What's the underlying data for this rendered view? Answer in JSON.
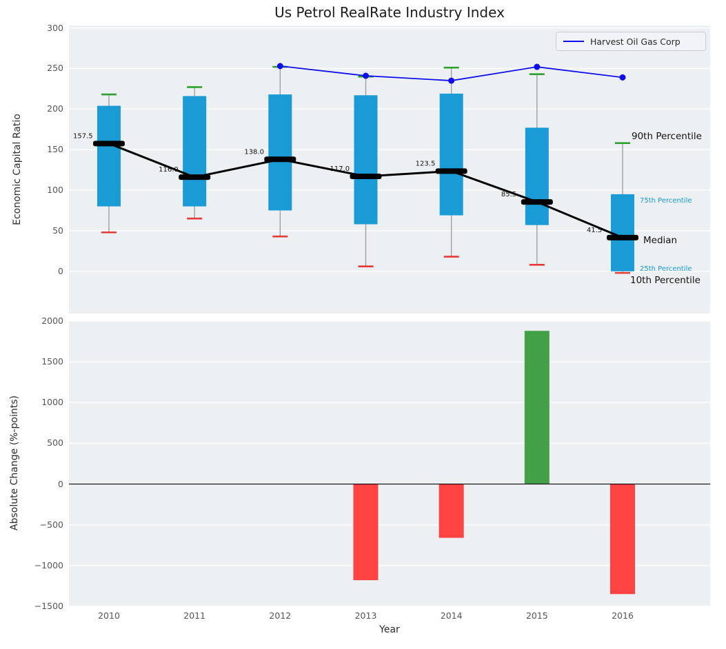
{
  "title": "Us Petrol RealRate Industry Index",
  "legend": {
    "series_label": "Harvest Oil Gas Corp"
  },
  "annotations": {
    "p90": "90th Percentile",
    "p75": "75th Percentile",
    "median": "Median",
    "p25": "25th Percentile",
    "p10": "10th Percentile"
  },
  "colors": {
    "box_fill": "#1a9bd5",
    "p90_cap_green": "#2ca02c",
    "p10_cap_red": "#e53935",
    "bar_positive_green": "#43a047",
    "bar_negative_red": "#ff4343",
    "harvest_line_blue": "#0d0dee",
    "median_black": "#000000",
    "plot_background": "#edf0f3",
    "gridline": "#ffffff",
    "whisker_gray": "#9a9a9a",
    "percentile_small_label": "#1599d6",
    "tick_label": "#555555"
  },
  "chart_data": [
    {
      "type": "boxplot+line",
      "title": "Us Petrol RealRate Industry Index",
      "ylabel": "Economic Capital Ratio",
      "years": [
        2010,
        2011,
        2012,
        2013,
        2014,
        2015,
        2016
      ],
      "yticks": [
        300,
        250,
        200,
        150,
        100,
        50,
        0
      ],
      "ytick_labels": [
        "300",
        "250",
        "200",
        "150",
        "100",
        "50",
        "0"
      ],
      "ylim": [
        -52,
        303
      ],
      "grid": true,
      "legend_position": "upper right",
      "boxes": {
        "p90": [
          218,
          227,
          252,
          240,
          251,
          243,
          158
        ],
        "p75": [
          204,
          216,
          218,
          217,
          219,
          177,
          95
        ],
        "median": [
          157.5,
          116.0,
          138.0,
          117.0,
          123.5,
          85.5,
          41.5
        ],
        "p25": [
          80,
          80,
          75,
          58,
          69,
          57,
          0
        ],
        "p10": [
          48,
          65,
          43,
          6,
          18,
          8,
          -2
        ]
      },
      "median_labels": [
        "157.5",
        "116.0",
        "138.0",
        "117.0",
        "123.5",
        "85.5",
        "41.5"
      ],
      "series": [
        {
          "name": "Harvest Oil Gas Corp",
          "x": [
            2012,
            2013,
            2014,
            2015,
            2016
          ],
          "values": [
            253,
            241,
            235,
            252,
            239
          ]
        }
      ]
    },
    {
      "type": "bar",
      "ylabel": "Absolute Change (%-points)",
      "xlabel": "Year",
      "categories": [
        2010,
        2011,
        2012,
        2013,
        2014,
        2015,
        2016
      ],
      "xtick_labels": [
        "2010",
        "2011",
        "2012",
        "2013",
        "2014",
        "2015",
        "2016"
      ],
      "values": [
        0,
        0,
        0,
        -1180,
        -660,
        1880,
        -1350
      ],
      "yticks": [
        2000,
        1500,
        1000,
        500,
        0,
        -500,
        -1000,
        -1500
      ],
      "ytick_labels": [
        "2000",
        "1500",
        "1000",
        "500",
        "0",
        "−500",
        "−1000",
        "−1500"
      ],
      "ylim": [
        -1500,
        2000
      ],
      "grid": true
    }
  ]
}
